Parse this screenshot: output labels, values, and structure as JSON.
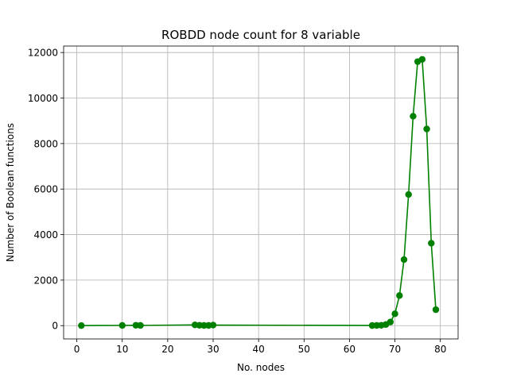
{
  "chart_data": {
    "type": "line",
    "title": "ROBDD node count for 8 variable",
    "xlabel": "No. nodes",
    "ylabel": "Number of Boolean functions",
    "xlim": [
      -2.9,
      83.9
    ],
    "ylim": [
      -585,
      12285
    ],
    "x_ticks": [
      0,
      10,
      20,
      30,
      40,
      50,
      60,
      70,
      80
    ],
    "y_ticks": [
      0,
      2000,
      4000,
      6000,
      8000,
      10000,
      12000
    ],
    "x_tick_labels": [
      "0",
      "10",
      "20",
      "30",
      "40",
      "50",
      "60",
      "70",
      "80"
    ],
    "y_tick_labels": [
      "0",
      "2000",
      "4000",
      "6000",
      "8000",
      "10000",
      "12000"
    ],
    "grid": true,
    "series": [
      {
        "color": "#008000",
        "marker": "circle",
        "x": [
          1,
          10,
          13,
          14,
          26,
          27,
          28,
          29,
          30,
          65,
          66,
          67,
          68,
          69,
          70,
          71,
          72,
          73,
          74,
          75,
          76,
          77,
          78,
          79
        ],
        "y": [
          2,
          8,
          16,
          8,
          32,
          16,
          8,
          8,
          24,
          4,
          8,
          16,
          48,
          160,
          520,
          1320,
          2900,
          5760,
          9200,
          11600,
          11700,
          8640,
          3620,
          700
        ]
      }
    ]
  }
}
